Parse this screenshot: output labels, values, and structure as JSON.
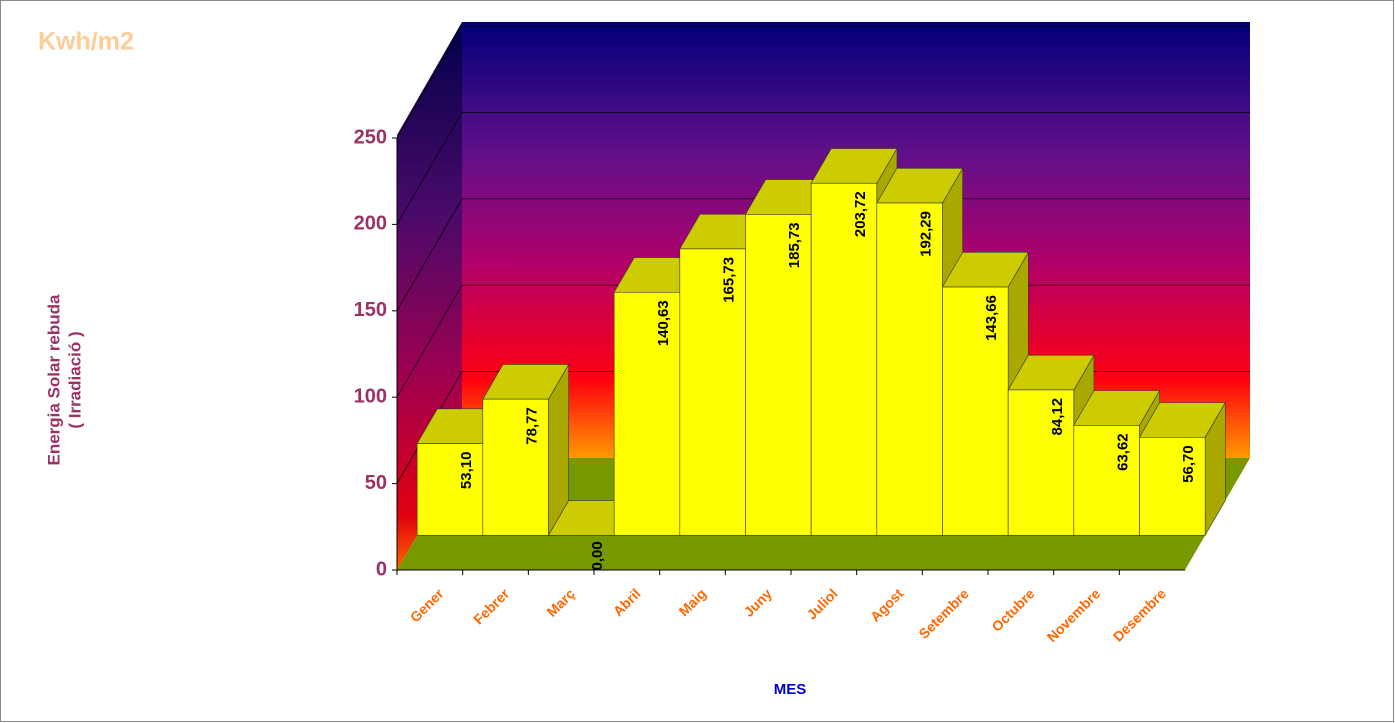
{
  "chart_data": {
    "type": "bar3d",
    "title": "Kwh/m2",
    "ylabel": [
      "Energia Solar rebuda",
      "( Irradiació )"
    ],
    "xlabel": "MES",
    "categories": [
      "Gener",
      "Febrer",
      "Març",
      "Abril",
      "Maig",
      "Juny",
      "Juliol",
      "Agost",
      "Setembre",
      "Octubre",
      "Novembre",
      "Desembre"
    ],
    "values": [
      53.1,
      78.77,
      0.0,
      140.63,
      165.73,
      185.73,
      203.72,
      192.29,
      143.66,
      84.12,
      63.62,
      56.7
    ],
    "value_labels": [
      "53,10",
      "78,77",
      "0,00",
      "140,63",
      "165,73",
      "185,73",
      "203,72",
      "192,29",
      "143,66",
      "84,12",
      "63,62",
      "56,70"
    ],
    "color": "#ffff00",
    "ylim": [
      0,
      250
    ],
    "yticks": [
      0,
      50,
      100,
      150,
      200,
      250
    ],
    "grid": true
  }
}
